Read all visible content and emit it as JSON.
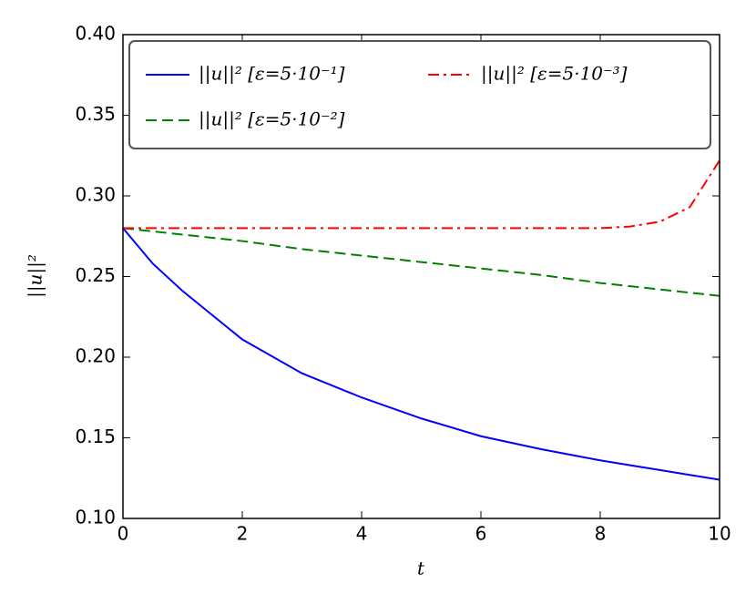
{
  "chart_data": {
    "type": "line",
    "xlabel": "t",
    "ylabel": "||u||²",
    "x": [
      0,
      0.5,
      1,
      1.5,
      2,
      3,
      4,
      5,
      6,
      7,
      8,
      8.5,
      9,
      9.5,
      10
    ],
    "series": [
      {
        "name": "||u||²  [ε=5·10⁻¹]",
        "color": "#0000ff",
        "linestyle": "solid",
        "values": [
          0.28,
          0.258,
          0.241,
          0.226,
          0.211,
          0.19,
          0.175,
          0.162,
          0.151,
          0.143,
          0.136,
          0.133,
          0.13,
          0.127,
          0.124
        ]
      },
      {
        "name": "||u||²  [ε=5·10⁻²]",
        "color": "#008000",
        "linestyle": "dashed",
        "values": [
          0.28,
          0.278,
          0.276,
          0.274,
          0.272,
          0.267,
          0.263,
          0.259,
          0.255,
          0.251,
          0.246,
          0.244,
          0.242,
          0.24,
          0.238
        ]
      },
      {
        "name": "||u||²  [ε=5·10⁻³]",
        "color": "#ff0000",
        "linestyle": "dashdot",
        "values": [
          0.28,
          0.28,
          0.28,
          0.28,
          0.28,
          0.28,
          0.28,
          0.28,
          0.28,
          0.28,
          0.28,
          0.281,
          0.284,
          0.293,
          0.322
        ]
      }
    ],
    "xlim": [
      0,
      10
    ],
    "xticks": [
      0,
      2,
      4,
      6,
      8,
      10
    ],
    "ylim": [
      0.1,
      0.4
    ],
    "yticks": [
      {
        "value": 0.1,
        "label": "0.10"
      },
      {
        "value": 0.15,
        "label": "0.15"
      },
      {
        "value": 0.2,
        "label": "0.20"
      },
      {
        "value": 0.25,
        "label": "0.25"
      },
      {
        "value": 0.3,
        "label": "0.30"
      },
      {
        "value": 0.35,
        "label": "0.35"
      },
      {
        "value": 0.4,
        "label": "0.40"
      }
    ],
    "legend": "upper left",
    "grid": false
  }
}
